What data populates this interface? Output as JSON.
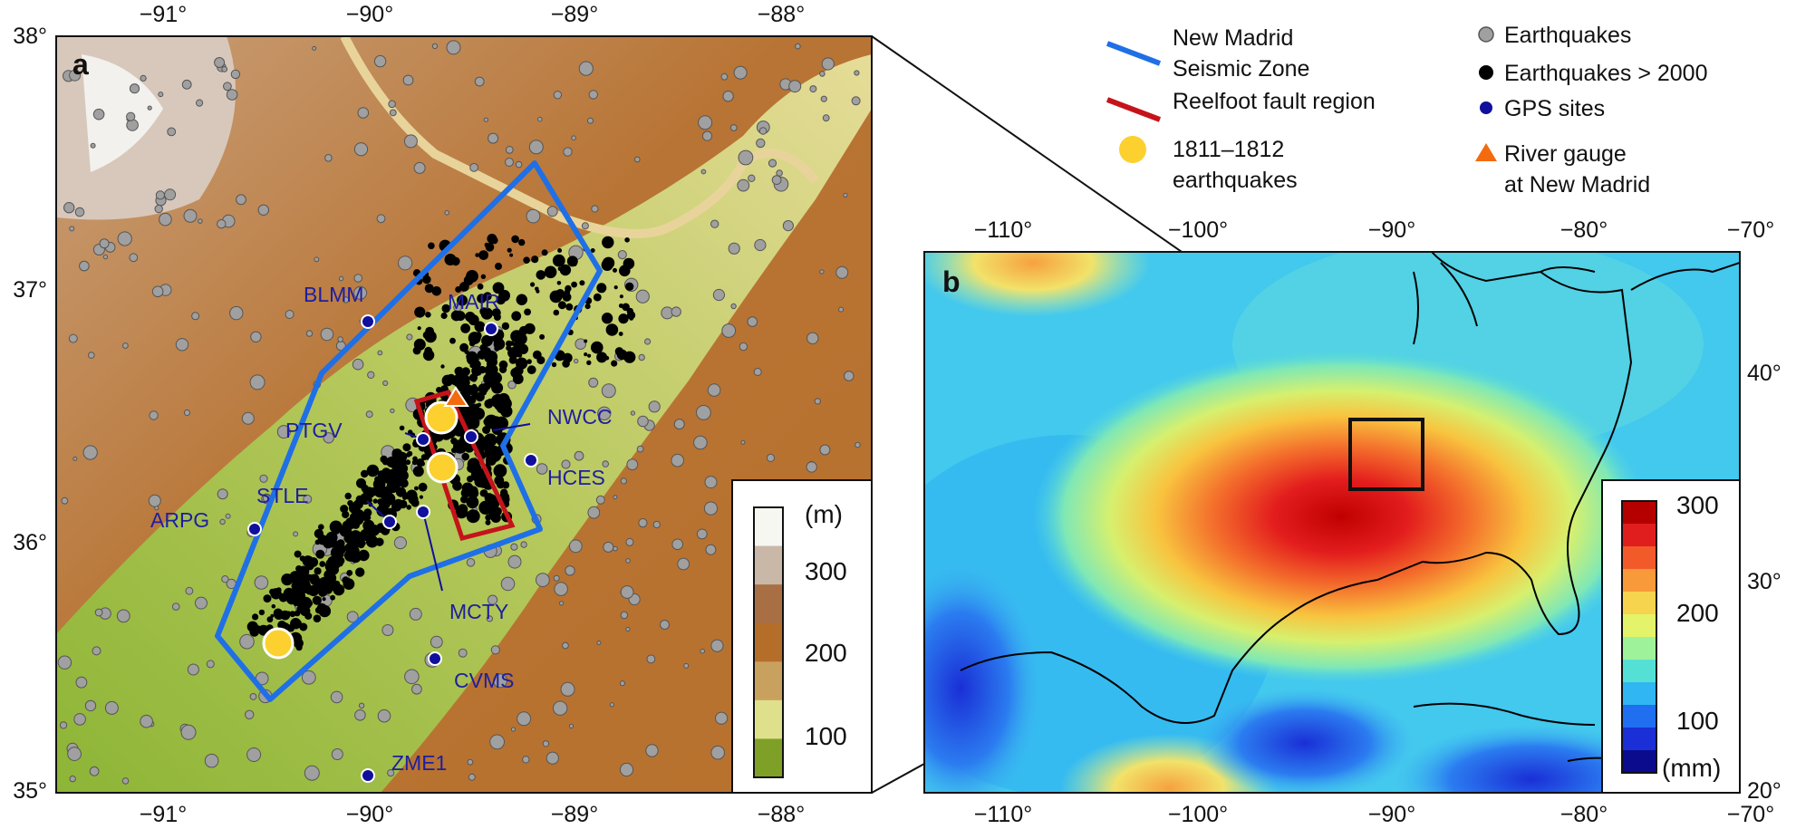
{
  "panel_a": {
    "letter": "a",
    "x_ticks": [
      "−91°",
      "−90°",
      "−89°",
      "−88°"
    ],
    "y_ticks": [
      "38°",
      "37°",
      "36°",
      "35°"
    ],
    "gps_sites": [
      {
        "name": "BLMM"
      },
      {
        "name": "MAIR"
      },
      {
        "name": "NWCC"
      },
      {
        "name": "PTGV"
      },
      {
        "name": "HCES"
      },
      {
        "name": "STLE"
      },
      {
        "name": "ARPG"
      },
      {
        "name": "MCTY"
      },
      {
        "name": "CVMS"
      },
      {
        "name": "ZME1"
      }
    ],
    "colorbar": {
      "unit": "(m)",
      "ticks": [
        "300",
        "200",
        "100"
      ],
      "colors": [
        "#f7f7f2",
        "#c9b7a8",
        "#a86f45",
        "#b56e2a",
        "#c9a15e",
        "#dfe08c",
        "#7fa027"
      ]
    }
  },
  "panel_b": {
    "letter": "b",
    "x_ticks": [
      "−110°",
      "−100°",
      "−90°",
      "−80°",
      "−70°"
    ],
    "y_ticks": [
      "40°",
      "30°",
      "20°"
    ],
    "colorbar": {
      "unit": "(mm)",
      "ticks": [
        "300",
        "200",
        "100"
      ],
      "colors": [
        "#b50000",
        "#e01e1e",
        "#f35a2a",
        "#f99a3a",
        "#f6d44d",
        "#e4f46a",
        "#9ef29a",
        "#55e0d6",
        "#30b6f2",
        "#1f6ff0",
        "#1a2fd6",
        "#0b0b8e"
      ]
    }
  },
  "legend": {
    "col1": [
      {
        "symbol": "blue-line",
        "lines": [
          "New Madrid",
          "Seismic Zone"
        ]
      },
      {
        "symbol": "red-line",
        "lines": [
          "Reelfoot fault region"
        ]
      },
      {
        "symbol": "yellow-dot",
        "lines": [
          "1811–1812",
          "earthquakes"
        ]
      }
    ],
    "col2": [
      {
        "symbol": "gray-dot",
        "lines": [
          "Earthquakes"
        ]
      },
      {
        "symbol": "black-dot",
        "lines": [
          "Earthquakes > 2000"
        ]
      },
      {
        "symbol": "navy-dot",
        "lines": [
          "GPS sites"
        ]
      },
      {
        "symbol": "orange-triangle",
        "lines": [
          "River gauge",
          "at New Madrid"
        ]
      }
    ]
  },
  "colors": {
    "seismic_zone": "#1f6fe6",
    "reelfoot": "#c4141a",
    "historic_quake": "#fcd02e",
    "earthquake": "#a0a0a0",
    "earthquake_2000": "#000000",
    "gps_site": "#10109c",
    "river_gauge": "#f46b0f"
  }
}
